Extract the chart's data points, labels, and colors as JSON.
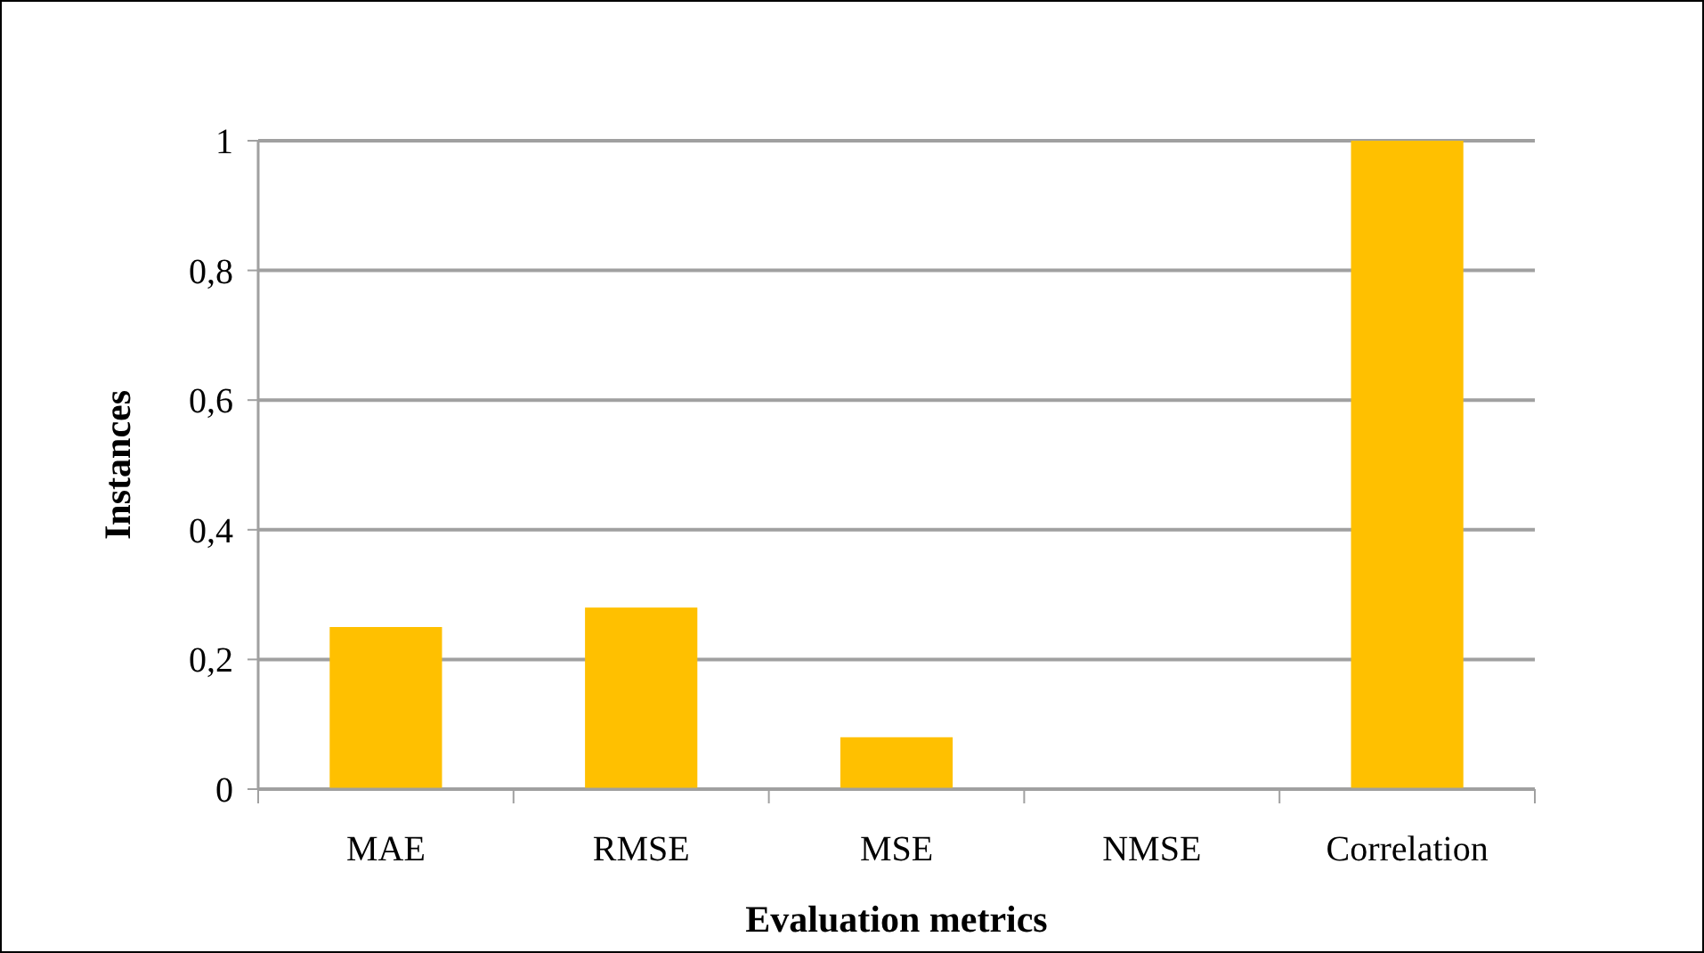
{
  "chart_data": {
    "type": "bar",
    "xlabel": "Evaluation metrics",
    "ylabel": "Instances",
    "categories": [
      "MAE",
      "RMSE",
      "MSE",
      "NMSE",
      "Correlation"
    ],
    "values": [
      0.25,
      0.28,
      0.08,
      0,
      1
    ],
    "color": "#ffc000",
    "ylim": [
      0,
      1
    ],
    "yticks": [
      {
        "value": 0,
        "label": "0"
      },
      {
        "value": 0.2,
        "label": "0,2"
      },
      {
        "value": 0.4,
        "label": "0,4"
      },
      {
        "value": 0.6,
        "label": "0,6"
      },
      {
        "value": 0.8,
        "label": "0,8"
      },
      {
        "value": 1,
        "label": "1"
      }
    ],
    "grid": "y"
  }
}
